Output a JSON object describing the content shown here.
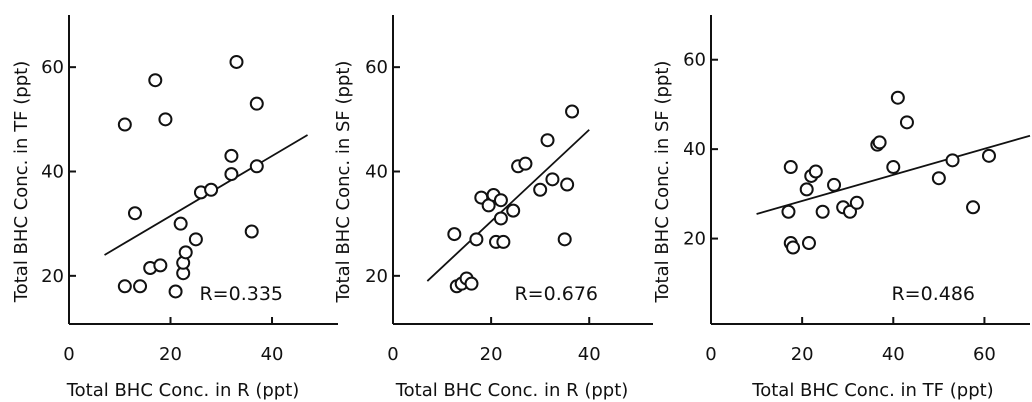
{
  "chart_data": [
    {
      "type": "scatter",
      "xlabel": "Total BHC Conc. in R (ppt)",
      "ylabel": "Total BHC Conc. in TF (ppt)",
      "xlim": [
        0,
        53
      ],
      "ylim": [
        10,
        70
      ],
      "xticks": [
        0,
        20,
        40
      ],
      "yticks": [
        20,
        40,
        60
      ],
      "annotation": "R=0.335",
      "grid": false,
      "points": [
        [
          11,
          49
        ],
        [
          11,
          18
        ],
        [
          13,
          32
        ],
        [
          14,
          18
        ],
        [
          16,
          21.5
        ],
        [
          17,
          57.5
        ],
        [
          18,
          22
        ],
        [
          19,
          50
        ],
        [
          21,
          17
        ],
        [
          22,
          30
        ],
        [
          22.5,
          20.5
        ],
        [
          22.5,
          22.5
        ],
        [
          23,
          24.5
        ],
        [
          25,
          27
        ],
        [
          26,
          36
        ],
        [
          28,
          36.5
        ],
        [
          32,
          39.5
        ],
        [
          32,
          43
        ],
        [
          33,
          61
        ],
        [
          36,
          28.5
        ],
        [
          37,
          53
        ],
        [
          37,
          41
        ]
      ],
      "fit_line": [
        [
          7,
          24
        ],
        [
          47,
          47
        ]
      ]
    },
    {
      "type": "scatter",
      "xlabel": "Total BHC Conc. in R (ppt)",
      "ylabel": "Total BHC Conc. in SF (ppt)",
      "xlim": [
        0,
        53
      ],
      "ylim": [
        10,
        70
      ],
      "xticks": [
        0,
        20,
        40
      ],
      "yticks": [
        20,
        40,
        60
      ],
      "annotation": "R=0.676",
      "grid": false,
      "points": [
        [
          12.5,
          28
        ],
        [
          13,
          18
        ],
        [
          14,
          18.5
        ],
        [
          15,
          19.5
        ],
        [
          16,
          18.5
        ],
        [
          17,
          27
        ],
        [
          18,
          35
        ],
        [
          19.5,
          33.5
        ],
        [
          20.5,
          35.5
        ],
        [
          21,
          26.5
        ],
        [
          22,
          34.5
        ],
        [
          22,
          31
        ],
        [
          22.5,
          26.5
        ],
        [
          24.5,
          32.5
        ],
        [
          25.5,
          41
        ],
        [
          27,
          41.5
        ],
        [
          30,
          36.5
        ],
        [
          31.5,
          46
        ],
        [
          32.5,
          38.5
        ],
        [
          35,
          27
        ],
        [
          35.5,
          37.5
        ],
        [
          36.5,
          51.5
        ]
      ],
      "fit_line": [
        [
          7,
          19
        ],
        [
          40,
          48
        ]
      ]
    },
    {
      "type": "scatter",
      "xlabel": "Total BHC Conc. in TF (ppt)",
      "ylabel": "Total BHC Conc. in SF (ppt)",
      "xlim": [
        0,
        70
      ],
      "ylim": [
        0,
        70
      ],
      "xticks": [
        0,
        20,
        40,
        60
      ],
      "yticks": [
        20,
        40,
        60
      ],
      "annotation": "R=0.486",
      "grid": false,
      "points": [
        [
          17,
          26
        ],
        [
          17.5,
          36
        ],
        [
          17.5,
          19
        ],
        [
          18,
          18
        ],
        [
          21,
          31
        ],
        [
          21.5,
          19
        ],
        [
          22,
          34
        ],
        [
          23,
          35
        ],
        [
          24.5,
          26
        ],
        [
          27,
          32
        ],
        [
          29,
          27
        ],
        [
          30.5,
          26
        ],
        [
          32,
          28
        ],
        [
          36.5,
          41
        ],
        [
          37,
          41.5
        ],
        [
          40,
          36
        ],
        [
          41,
          51.5
        ],
        [
          43,
          46
        ],
        [
          50,
          33.5
        ],
        [
          53,
          37.5
        ],
        [
          57.5,
          27
        ],
        [
          61,
          38.5
        ]
      ],
      "fit_line": [
        [
          10,
          25.5
        ],
        [
          70,
          43
        ]
      ]
    }
  ]
}
